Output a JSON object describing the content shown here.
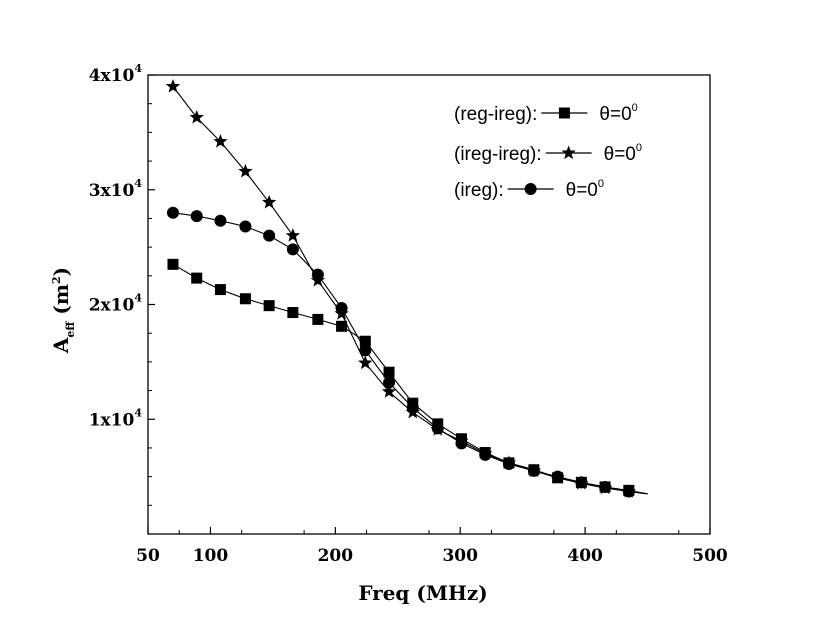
{
  "chart_data": {
    "type": "line",
    "title": "",
    "xlabel": "Freq (MHz)",
    "ylabel": {
      "base": "A",
      "sub": "eff",
      "unit_open": " (m",
      "unit_sup": "2",
      "unit_close": ")"
    },
    "xlim": [
      50,
      500
    ],
    "ylim": [
      0,
      40000
    ],
    "x_ticks": [
      {
        "value": 50,
        "label": "50"
      },
      {
        "value": 100,
        "label": "100"
      },
      {
        "value": 200,
        "label": "200"
      },
      {
        "value": 300,
        "label": "300"
      },
      {
        "value": 400,
        "label": "400"
      },
      {
        "value": 500,
        "label": "500"
      }
    ],
    "y_ticks": [
      {
        "value": 10000,
        "mantissa": "1x10",
        "exp": "4"
      },
      {
        "value": 20000,
        "mantissa": "2x10",
        "exp": "4"
      },
      {
        "value": 30000,
        "mantissa": "3x10",
        "exp": "4"
      },
      {
        "value": 40000,
        "mantissa": "4x10",
        "exp": "4"
      }
    ],
    "legend_position": "top-right",
    "series": [
      {
        "name": "(reg-ireg):",
        "theta_label": "θ=0",
        "theta_sup": "0",
        "marker": "square",
        "x": [
          70,
          89,
          108,
          128,
          147,
          166,
          186,
          205,
          224,
          243,
          262,
          282,
          301,
          320,
          339,
          359,
          378,
          397,
          416,
          435
        ],
        "y": [
          23500,
          22300,
          21300,
          20500,
          19900,
          19300,
          18700,
          18100,
          16800,
          14100,
          11400,
          9600,
          8300,
          7100,
          6200,
          5600,
          4900,
          4500,
          4100,
          3800
        ],
        "tail": [
          450,
          3500
        ]
      },
      {
        "name": "(ireg-ireg):",
        "theta_label": "θ=0",
        "theta_sup": "0",
        "marker": "star",
        "x": [
          70,
          89,
          108,
          128,
          147,
          166,
          186,
          205,
          224,
          243,
          262,
          282,
          301,
          320,
          339,
          359,
          378,
          397,
          416,
          435
        ],
        "y": [
          39000,
          36300,
          34200,
          31600,
          28900,
          26000,
          22100,
          19200,
          14900,
          12400,
          10600,
          9100,
          8100,
          7000,
          6200,
          5500,
          4900,
          4400,
          4000,
          3700
        ],
        "tail": [
          450,
          3500
        ]
      },
      {
        "name": "(ireg):",
        "theta_label": "θ=0",
        "theta_sup": "0",
        "marker": "circle",
        "x": [
          70,
          89,
          108,
          128,
          147,
          166,
          186,
          205,
          224,
          243,
          262,
          282,
          301,
          320,
          339,
          359,
          378,
          397,
          416,
          435
        ],
        "y": [
          28000,
          27700,
          27300,
          26800,
          26000,
          24800,
          22600,
          19700,
          16000,
          13200,
          11000,
          9200,
          7900,
          6900,
          6100,
          5500,
          5000,
          4500,
          4100,
          3700
        ],
        "tail": [
          450,
          3500
        ]
      }
    ]
  }
}
